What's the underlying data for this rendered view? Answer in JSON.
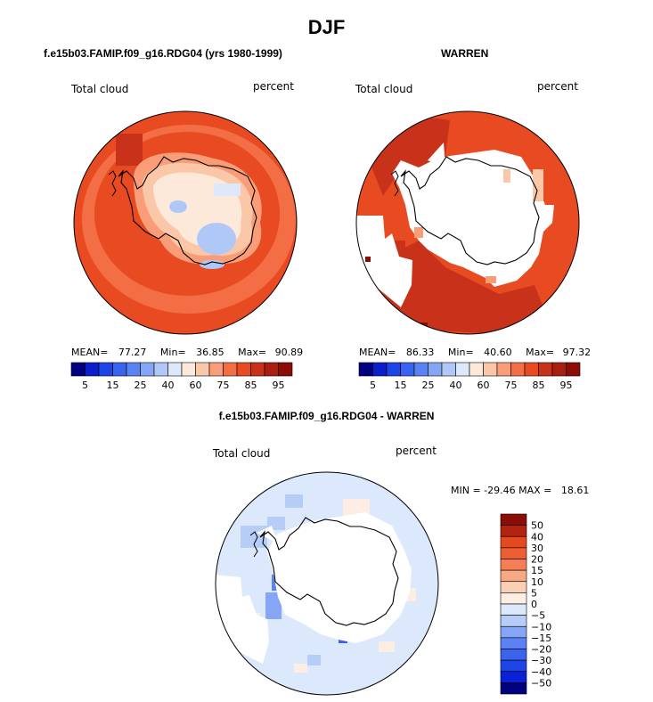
{
  "page_title": "DJF",
  "colors": {
    "seq_palette": [
      "#000080",
      "#0a1ecc",
      "#1e44e6",
      "#3a63ee",
      "#5a82f2",
      "#86a6f5",
      "#b0c8f8",
      "#dde8fb",
      "#fde9da",
      "#fbc7a9",
      "#f89d78",
      "#f36e45",
      "#e84a22",
      "#c9321a",
      "#a81f10",
      "#8b0d05"
    ],
    "diff_palette": [
      "#000080",
      "#0a22d6",
      "#1e44e6",
      "#3a63ee",
      "#5a82f2",
      "#86a6f5",
      "#b6cdf8",
      "#dce8fb",
      "#fdeee3",
      "#fbcfb4",
      "#f7a884",
      "#f47f56",
      "#ef5d32",
      "#e44a1e",
      "#b22410",
      "#8b0d05"
    ],
    "land": "#ffffff",
    "coast": "#000000"
  },
  "chart_data": [
    {
      "type": "heatmap",
      "projection": "south-polar-stereographic",
      "title": "f.e15b03.FAMIP.f09_g16.RDG04 (yrs 1980-1999)",
      "left_label": "Total cloud",
      "right_label": "percent",
      "stats": {
        "mean_label": "MEAN=",
        "mean": "77.27",
        "min_label": "Min=",
        "min": "36.85",
        "max_label": "Max=",
        "max": "90.89"
      },
      "colorbar": {
        "orientation": "horizontal",
        "ticks": [
          "5",
          "15",
          "25",
          "40",
          "60",
          "75",
          "85",
          "95"
        ]
      }
    },
    {
      "type": "heatmap",
      "projection": "south-polar-stereographic",
      "title": "WARREN",
      "left_label": "Total cloud",
      "right_label": "percent",
      "stats": {
        "mean_label": "MEAN=",
        "mean": "86.33",
        "min_label": "Min=",
        "min": "40.60",
        "max_label": "Max=",
        "max": "97.32"
      },
      "colorbar": {
        "orientation": "horizontal",
        "ticks": [
          "5",
          "15",
          "25",
          "40",
          "60",
          "75",
          "85",
          "95"
        ]
      }
    },
    {
      "type": "heatmap",
      "projection": "south-polar-stereographic",
      "title": "f.e15b03.FAMIP.f09_g16.RDG04 - WARREN",
      "left_label": "Total cloud",
      "right_label": "percent",
      "stats_line": "MIN = -29.46 MAX =   18.61",
      "colorbar": {
        "orientation": "vertical",
        "ticks": [
          "50",
          "40",
          "30",
          "20",
          "15",
          "10",
          "5",
          "0",
          "−5",
          "−10",
          "−15",
          "−20",
          "−30",
          "−40",
          "−50"
        ]
      }
    }
  ]
}
